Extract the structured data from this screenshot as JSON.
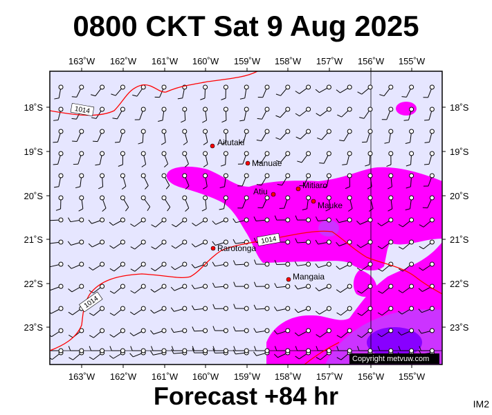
{
  "title": "0800 CKT Sat 9 Aug 2025",
  "footer": "Forecast +84 hr",
  "tag": "IM2",
  "copyright": "Copyright metvuw.com",
  "lon_labels": [
    "163˚W",
    "162˚W",
    "161˚W",
    "160˚W",
    "159˚W",
    "158˚W",
    "157˚W",
    "156˚W",
    "155˚W"
  ],
  "lat_labels": [
    "18˚S",
    "19˚S",
    "20˚S",
    "21˚S",
    "22˚S",
    "23˚S"
  ],
  "places": [
    {
      "name": "Aitutaki"
    },
    {
      "name": "Manuae"
    },
    {
      "name": "Atiu"
    },
    {
      "name": "Mitiaro"
    },
    {
      "name": "Mauke"
    },
    {
      "name": "Rarotonga"
    },
    {
      "name": "Mangaia"
    }
  ],
  "isobar_labels": [
    "1014",
    "1014",
    "1014"
  ],
  "colors": {
    "ocean": "#e6e6ff",
    "rain_light": "#ff00ff",
    "rain_medium": "#cc33ff",
    "rain_heavy": "#8800ff",
    "isobar": "#ff0000",
    "place_dot": "#ff0000"
  }
}
